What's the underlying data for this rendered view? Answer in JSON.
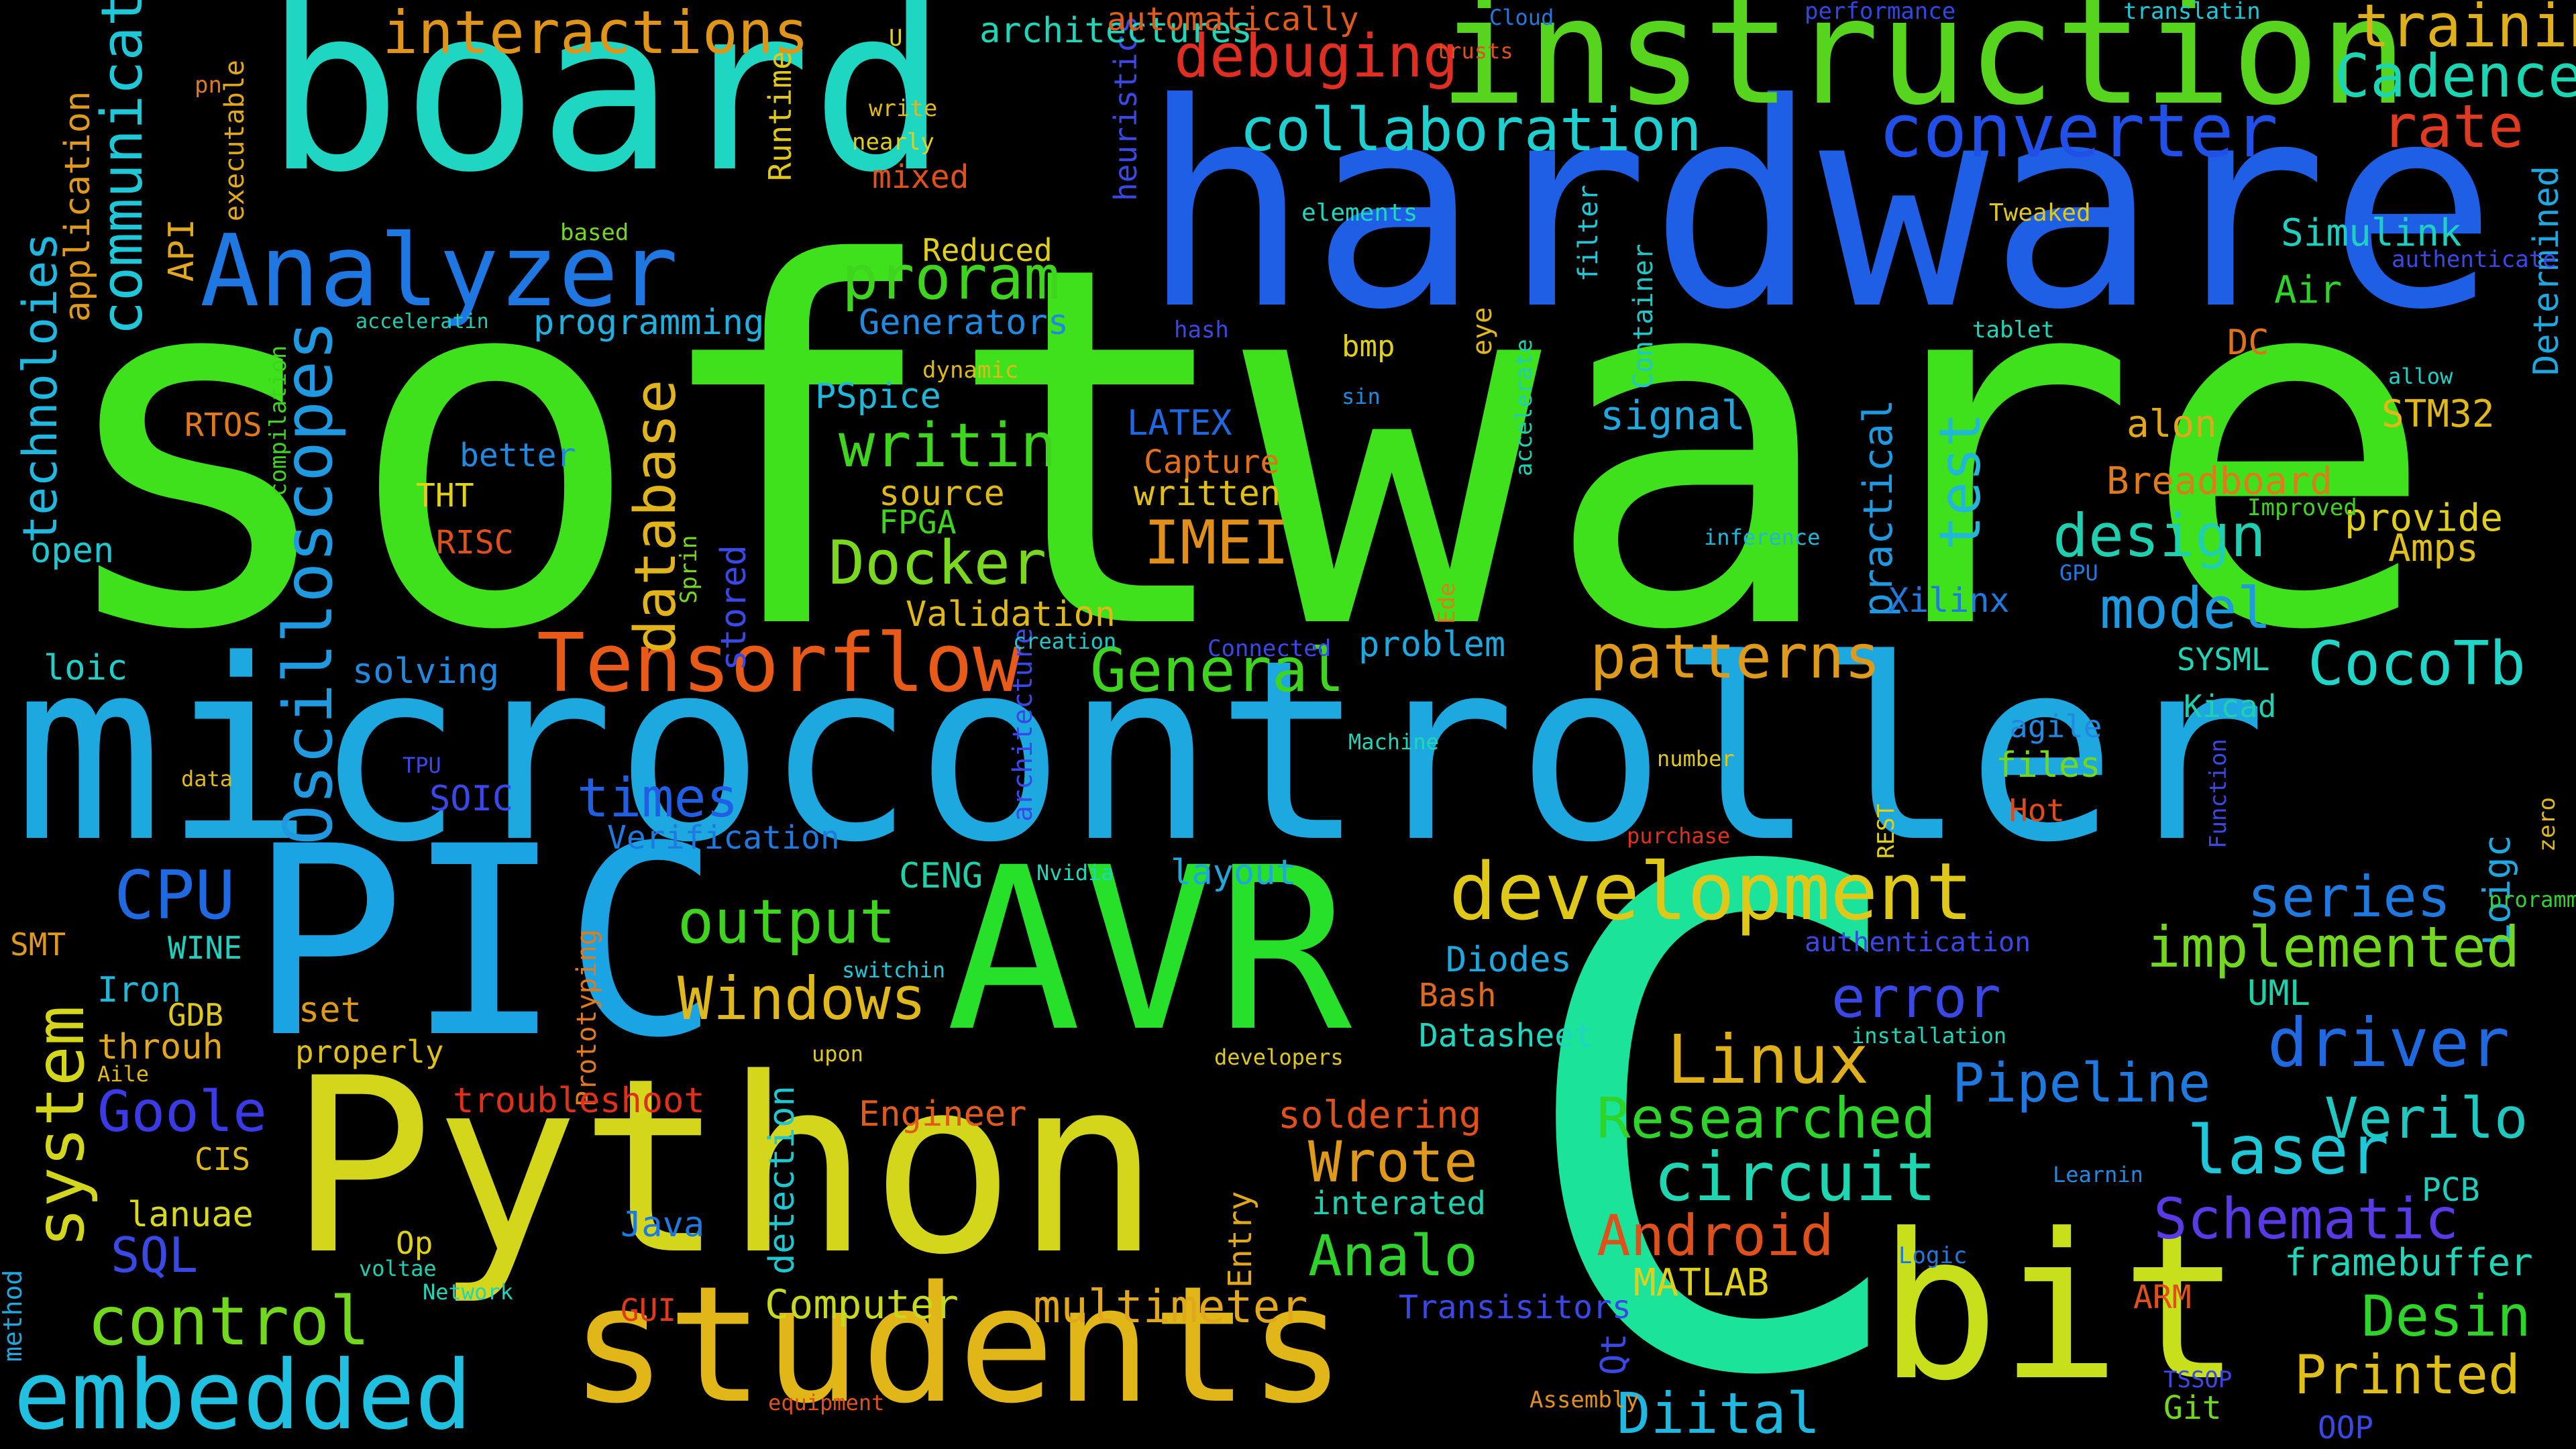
{
  "words": [
    {
      "t": "software",
      "c": "#3fe01c"
    },
    {
      "t": "microcontroller",
      "c": "#1ea8e0"
    },
    {
      "t": "hardware",
      "c": "#1f5fe6"
    },
    {
      "t": "board",
      "c": "#1fd6c2"
    },
    {
      "t": "instruction",
      "c": "#56d41e"
    },
    {
      "t": "C",
      "c": "#1be39a"
    },
    {
      "t": "PIC",
      "c": "#1ba4e4"
    },
    {
      "t": "AVR",
      "c": "#27e02a"
    },
    {
      "t": "Python",
      "c": "#d3d61a"
    },
    {
      "t": "students",
      "c": "#e0b618"
    },
    {
      "t": "bit",
      "c": "#c8e01c"
    },
    {
      "t": "embedded",
      "c": "#1fc0e0"
    },
    {
      "t": "Analyzer",
      "c": "#1f77e2"
    },
    {
      "t": "converter",
      "c": "#2050e8"
    },
    {
      "t": "collaboration",
      "c": "#1fd0d0"
    },
    {
      "t": "development",
      "c": "#e0c818"
    },
    {
      "t": "Tensorflow",
      "c": "#e85a18"
    },
    {
      "t": "interactions",
      "c": "#e09418"
    },
    {
      "t": "debuging",
      "c": "#e02e22"
    },
    {
      "t": "trainin",
      "c": "#e0b01a"
    },
    {
      "t": "Cadence",
      "c": "#1ad6b2"
    },
    {
      "t": "rate",
      "c": "#e03a20"
    },
    {
      "t": "Oscilloscopes",
      "c": "#1f9ae0"
    },
    {
      "t": "database",
      "c": "#e0b41a"
    },
    {
      "t": "proram",
      "c": "#3fd41e"
    },
    {
      "t": "writin",
      "c": "#3fd41e"
    },
    {
      "t": "Docker",
      "c": "#7ad81e"
    },
    {
      "t": "IMEI",
      "c": "#e0901a"
    },
    {
      "t": "General",
      "c": "#3fd41e"
    },
    {
      "t": "patterns",
      "c": "#e09a1a"
    },
    {
      "t": "CocoTb",
      "c": "#1fd6c8"
    },
    {
      "t": "design",
      "c": "#1fd0b0"
    },
    {
      "t": "model",
      "c": "#1f9ae0"
    },
    {
      "t": "control",
      "c": "#72d81e"
    },
    {
      "t": "output",
      "c": "#3fd41e"
    },
    {
      "t": "Windows",
      "c": "#e0b81a"
    },
    {
      "t": "Linux",
      "c": "#e0b01a"
    },
    {
      "t": "circuit",
      "c": "#1fd6b2"
    },
    {
      "t": "Researched",
      "c": "#2ed42a"
    },
    {
      "t": "Android",
      "c": "#e0501a"
    },
    {
      "t": "Analo",
      "c": "#2ed42a"
    },
    {
      "t": "Wrote",
      "c": "#e09a1a"
    },
    {
      "t": "implemented",
      "c": "#72d81e"
    },
    {
      "t": "driver",
      "c": "#1f6ae0"
    },
    {
      "t": "series",
      "c": "#1f7ae0"
    },
    {
      "t": "laser",
      "c": "#1fc8d8"
    },
    {
      "t": "Verilo",
      "c": "#1fc8c0"
    },
    {
      "t": "Schematic",
      "c": "#5a3ae6"
    },
    {
      "t": "framebuffer",
      "c": "#1fd6b8"
    },
    {
      "t": "Desin",
      "c": "#2ed42a"
    },
    {
      "t": "Printed",
      "c": "#e0c018"
    },
    {
      "t": "Diital",
      "c": "#1fb8e0"
    },
    {
      "t": "multimeter",
      "c": "#e0a81a"
    },
    {
      "t": "Computer",
      "c": "#c8d81e"
    },
    {
      "t": "system",
      "c": "#d3d61a"
    },
    {
      "t": "CPU",
      "c": "#1f6ae0"
    },
    {
      "t": "Goole",
      "c": "#3a3ae6"
    },
    {
      "t": "SQL",
      "c": "#3a48e6"
    },
    {
      "t": "Assembly",
      "c": "#e0901a"
    },
    {
      "t": "communication",
      "c": "#1fc8d8"
    },
    {
      "t": "technoloies",
      "c": "#1fb8e0"
    },
    {
      "t": "application",
      "c": "#e09a1a"
    },
    {
      "t": "API",
      "c": "#e0a81a"
    },
    {
      "t": "times",
      "c": "#1f5fe6"
    },
    {
      "t": "error",
      "c": "#3a48e6"
    },
    {
      "t": "test",
      "c": "#1fb8d8"
    },
    {
      "t": "practical",
      "c": "#1f9ae0"
    },
    {
      "t": "Pipeline",
      "c": "#1f7ae0"
    },
    {
      "t": "signal",
      "c": "#1fa8e0"
    },
    {
      "t": "alon",
      "c": "#e0a81a"
    },
    {
      "t": "Breadboard",
      "c": "#e07a1a"
    },
    {
      "t": "provide",
      "c": "#e0d01a"
    },
    {
      "t": "Amps",
      "c": "#e0c018"
    },
    {
      "t": "STM32",
      "c": "#e0b818"
    },
    {
      "t": "DC",
      "c": "#e0701a"
    },
    {
      "t": "Air",
      "c": "#2ed42a"
    },
    {
      "t": "Simulink",
      "c": "#1fd0c0"
    },
    {
      "t": "Generators",
      "c": "#1f8ae0"
    },
    {
      "t": "programming",
      "c": "#1fb0e0"
    },
    {
      "t": "PSpice",
      "c": "#1fb8d8"
    },
    {
      "t": "LATEX",
      "c": "#1f68e0"
    },
    {
      "t": "Capture",
      "c": "#e0701a"
    },
    {
      "t": "written",
      "c": "#e0c018"
    },
    {
      "t": "source",
      "c": "#e0b818"
    },
    {
      "t": "FPGA",
      "c": "#3fd41e"
    },
    {
      "t": "Validation",
      "c": "#e0b818"
    },
    {
      "t": "problem",
      "c": "#1fa8e0"
    },
    {
      "t": "solving",
      "c": "#1f8ae0"
    },
    {
      "t": "loic",
      "c": "#1fd0c8"
    },
    {
      "t": "SOIC",
      "c": "#3a48e6"
    },
    {
      "t": "Verification",
      "c": "#1f7ae0"
    },
    {
      "t": "layout",
      "c": "#1fa8d8"
    },
    {
      "t": "CENG",
      "c": "#1fd0a8"
    },
    {
      "t": "Diodes",
      "c": "#1fa8e0"
    },
    {
      "t": "Bash",
      "c": "#e06a1a"
    },
    {
      "t": "Datasheet",
      "c": "#1fd6c0"
    },
    {
      "t": "soldering",
      "c": "#e0501a"
    },
    {
      "t": "interated",
      "c": "#1fd0b0"
    },
    {
      "t": "MATLAB",
      "c": "#e0d01a"
    },
    {
      "t": "Transisitors",
      "c": "#3a48e6"
    },
    {
      "t": "Engineer",
      "c": "#e05a1a"
    },
    {
      "t": "troubleshoot",
      "c": "#e0301a"
    },
    {
      "t": "Loigc",
      "c": "#1fa8e0"
    },
    {
      "t": "UML",
      "c": "#1fd0a8"
    },
    {
      "t": "Kicad",
      "c": "#1fd0b0"
    },
    {
      "t": "SYSML",
      "c": "#1fd6b8"
    },
    {
      "t": "agile",
      "c": "#1f8ae0"
    },
    {
      "t": "files",
      "c": "#72d81e"
    },
    {
      "t": "Hot",
      "c": "#e04a1a"
    },
    {
      "t": "Xilinx",
      "c": "#1f7ae0"
    },
    {
      "t": "lanuae",
      "c": "#d8d81e"
    },
    {
      "t": "throuh",
      "c": "#e0a81a"
    },
    {
      "t": "Iron",
      "c": "#1fb8d8"
    },
    {
      "t": "WINE",
      "c": "#1fd0c0"
    },
    {
      "t": "SMT",
      "c": "#e09a1a"
    },
    {
      "t": "GDB",
      "c": "#e0c818"
    },
    {
      "t": "properly",
      "c": "#e0c018"
    },
    {
      "t": "set",
      "c": "#e09a1a"
    },
    {
      "t": "CIS",
      "c": "#e0b818"
    },
    {
      "t": "Op",
      "c": "#e0d01a"
    },
    {
      "t": "Java",
      "c": "#1f7ae0"
    },
    {
      "t": "GUI",
      "c": "#e03a1a"
    },
    {
      "t": "ARM",
      "c": "#e0501a"
    },
    {
      "t": "Git",
      "c": "#72d81e"
    },
    {
      "t": "PCB",
      "c": "#1fd0c0"
    },
    {
      "t": "RTOS",
      "c": "#e07a1a"
    },
    {
      "t": "better",
      "c": "#1f8ae0"
    },
    {
      "t": "THT",
      "c": "#e0d01a"
    },
    {
      "t": "RISC",
      "c": "#e0501a"
    },
    {
      "t": "open",
      "c": "#1fc8d0"
    },
    {
      "t": "mixed",
      "c": "#e0501a"
    },
    {
      "t": "Reduced",
      "c": "#e0d01a"
    },
    {
      "t": "nearly",
      "c": "#e0d01a"
    },
    {
      "t": "write",
      "c": "#e0b818"
    },
    {
      "t": "architectures",
      "c": "#1fd6b8"
    },
    {
      "t": "automatically",
      "c": "#e05a1a"
    },
    {
      "t": "performance",
      "c": "#2e48e6"
    },
    {
      "t": "translatin",
      "c": "#1fc8d8"
    },
    {
      "t": "Cloud",
      "c": "#1f7ae0"
    },
    {
      "t": "Tweaked",
      "c": "#e0c818"
    },
    {
      "t": "elements",
      "c": "#1fd6c0"
    },
    {
      "t": "authenticate",
      "c": "#3a48e6"
    },
    {
      "t": "tablet",
      "c": "#1fd6b8"
    },
    {
      "t": "allow",
      "c": "#1fd0c8"
    },
    {
      "t": "Improved",
      "c": "#3fd41e"
    },
    {
      "t": "GPU",
      "c": "#1f7ae0"
    },
    {
      "t": "inference",
      "c": "#1fb8d8"
    },
    {
      "t": "hash",
      "c": "#3a48e6"
    },
    {
      "t": "sin",
      "c": "#1f8ae0"
    },
    {
      "t": "bmp",
      "c": "#e0d01a"
    },
    {
      "t": "dynamic",
      "c": "#e0b818"
    },
    {
      "t": "acceleratin",
      "c": "#1fd0b0"
    },
    {
      "t": "based",
      "c": "#72d81e"
    },
    {
      "t": "pn",
      "c": "#e07a1a"
    },
    {
      "t": "U",
      "c": "#e0d01a"
    },
    {
      "t": "trusts",
      "c": "#e0501a"
    },
    {
      "t": "creation",
      "c": "#1fc8c8"
    },
    {
      "t": "Connected",
      "c": "#3a48e6"
    },
    {
      "t": "TPU",
      "c": "#3a48e6"
    },
    {
      "t": "data",
      "c": "#e0b818"
    },
    {
      "t": "Machine",
      "c": "#1fd6b8"
    },
    {
      "t": "number",
      "c": "#e0c818"
    },
    {
      "t": "purchase",
      "c": "#e0301a"
    },
    {
      "t": "Nvidia",
      "c": "#1fd6b8"
    },
    {
      "t": "switchin",
      "c": "#1fc8d8"
    },
    {
      "t": "upon",
      "c": "#e0c818"
    },
    {
      "t": "developers",
      "c": "#e0c818"
    },
    {
      "t": "authentication",
      "c": "#3a48e6"
    },
    {
      "t": "installation",
      "c": "#1fd6b8"
    },
    {
      "t": "Learnin",
      "c": "#1f8ae0"
    },
    {
      "t": "zero",
      "c": "#e0b818"
    },
    {
      "t": "Function",
      "c": "#3a48e6"
    },
    {
      "t": "REST",
      "c": "#e0d01a"
    },
    {
      "t": "Ede",
      "c": "#e07a1a"
    },
    {
      "t": "accelerate",
      "c": "#1fd0b0"
    },
    {
      "t": "Container",
      "c": "#1fc8c8"
    },
    {
      "t": "filter",
      "c": "#1fc8d8"
    },
    {
      "t": "eye",
      "c": "#e0b818"
    },
    {
      "t": "stored",
      "c": "#3a48e6"
    },
    {
      "t": "Sprin",
      "c": "#72d81e"
    },
    {
      "t": "compilation",
      "c": "#3fd41e"
    },
    {
      "t": "Runtime",
      "c": "#e0c818"
    },
    {
      "t": "heuristics",
      "c": "#3a48e6"
    },
    {
      "t": "executable",
      "c": "#e0a81a"
    },
    {
      "t": "Logic",
      "c": "#1f7ae0"
    },
    {
      "t": "TSSOP",
      "c": "#3a48e6"
    },
    {
      "t": "Prototyping",
      "c": "#e07a1a"
    },
    {
      "t": "architecture",
      "c": "#3a48e6"
    },
    {
      "t": "detection",
      "c": "#1fc8d0"
    },
    {
      "t": "Entry",
      "c": "#e0a81a"
    },
    {
      "t": "Qt",
      "c": "#3a48e6"
    },
    {
      "t": "OOP",
      "c": "#3a48e6"
    },
    {
      "t": "Determined",
      "c": "#1fa8e0"
    },
    {
      "t": "method",
      "c": "#1fa8e0"
    },
    {
      "t": "equipment",
      "c": "#e0501a"
    },
    {
      "t": "Aile",
      "c": "#e0b818"
    },
    {
      "t": "voltae",
      "c": "#1fd0b0"
    },
    {
      "t": "Network",
      "c": "#1fd6b8"
    },
    {
      "t": "proramming",
      "c": "#2ed42a"
    }
  ]
}
